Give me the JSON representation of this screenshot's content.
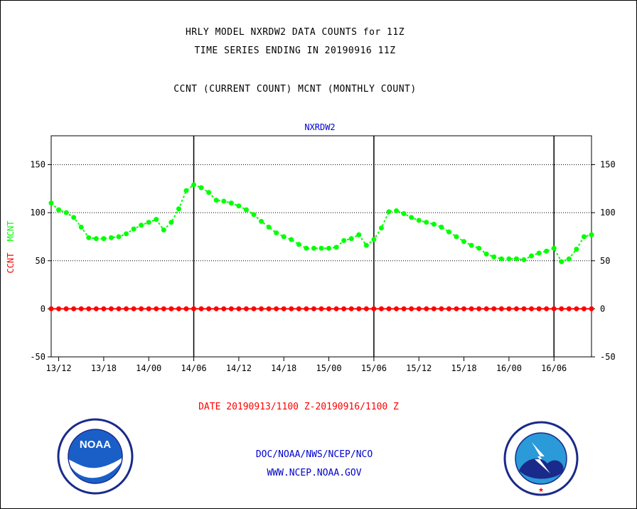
{
  "header": {
    "line1": "HRLY MODEL NXRDW2 DATA COUNTS for 11Z",
    "line2": "TIME SERIES ENDING IN 20190916 11Z",
    "line3": "CCNT (CURRENT COUNT) MCNT (MONTHLY COUNT)"
  },
  "footer": {
    "date_range": "DATE 20190913/1100 Z-20190916/1100 Z",
    "org": "DOC/NOAA/NWS/NCEP/NCO",
    "url": "WWW.NCEP.NOAA.GOV"
  },
  "logos": {
    "left_text": "NOAA",
    "right_text": "NATIONAL WEATHER SERVICE"
  },
  "chart_data": {
    "type": "line",
    "title": "NXRDW2",
    "ylabel_ccnt": "CCNT",
    "ylabel_mcnt": "MCNT",
    "ylim": [
      -50,
      180
    ],
    "y_ticks": [
      -50,
      0,
      50,
      100,
      150
    ],
    "y_tick_labels": [
      "-50",
      "0",
      "50",
      "100",
      "150"
    ],
    "grid": "dotted horizontal at 50, 100, 150; solid vertical at day boundaries",
    "xlim_hours": [
      0,
      72
    ],
    "x_ticks": [
      "13/12",
      "13/18",
      "14/00",
      "14/06",
      "14/12",
      "14/18",
      "15/00",
      "15/06",
      "15/12",
      "15/18",
      "16/00",
      "16/06"
    ],
    "day_boundaries": [
      "14/06",
      "15/06",
      "16/06"
    ],
    "colors": {
      "ccnt": "#ff0000",
      "mcnt": "#00ff00",
      "title": "#0000cc",
      "date": "#ff0000",
      "footer": "#0000cc"
    },
    "series": [
      {
        "name": "CCNT",
        "values": [
          0,
          0,
          0,
          0,
          0,
          0,
          0,
          0,
          0,
          0,
          0,
          0,
          0,
          0,
          0,
          0,
          0,
          0,
          0,
          0,
          0,
          0,
          0,
          0,
          0,
          0,
          0,
          0,
          0,
          0,
          0,
          0,
          0,
          0,
          0,
          0,
          0,
          0,
          0,
          0,
          0,
          0,
          0,
          0,
          0,
          0,
          0,
          0,
          0,
          0,
          0,
          0,
          0,
          0,
          0,
          0,
          0,
          0,
          0,
          0,
          0,
          0,
          0,
          0,
          0,
          0,
          0,
          0,
          0,
          0,
          0,
          0,
          0
        ]
      },
      {
        "name": "MCNT",
        "values": [
          110,
          103,
          100,
          95,
          85,
          74,
          73,
          73,
          74,
          75,
          78,
          83,
          87,
          90,
          93,
          82,
          90,
          104,
          123,
          129,
          126,
          121,
          113,
          112,
          110,
          107,
          103,
          98,
          91,
          85,
          79,
          75,
          72,
          67,
          63,
          63,
          63,
          63,
          64,
          71,
          73,
          77,
          66,
          72,
          84,
          101,
          102,
          99,
          95,
          92,
          90,
          88,
          85,
          80,
          75,
          70,
          66,
          63,
          57,
          54,
          52,
          52,
          52,
          51,
          55,
          58,
          60,
          63,
          49,
          52,
          62,
          75,
          77
        ]
      }
    ]
  }
}
